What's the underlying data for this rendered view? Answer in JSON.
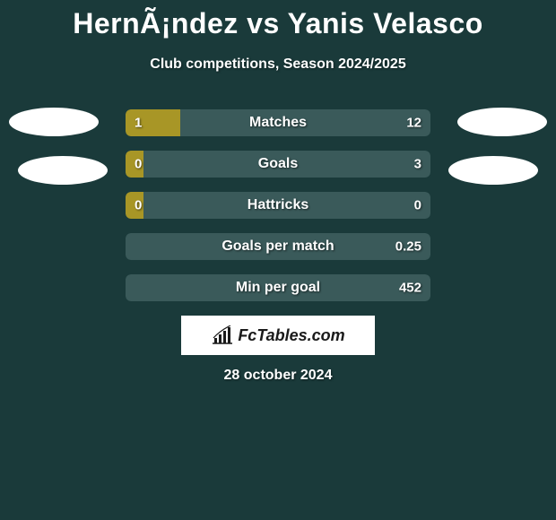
{
  "title": "HernÃ¡ndez vs Yanis Velasco",
  "subtitle": "Club competitions, Season 2024/2025",
  "date": "28 october 2024",
  "logo_text": "FcTables.com",
  "colors": {
    "background": "#1a3a3a",
    "bar_left": "#a89626",
    "bar_right": "#3a5a5a",
    "avatar": "#ffffff",
    "text": "#ffffff"
  },
  "bars": [
    {
      "label": "Matches",
      "left_value": "1",
      "right_value": "12",
      "left_pct": 18,
      "left_color": "#a89626",
      "right_color": "#3a5a5a"
    },
    {
      "label": "Goals",
      "left_value": "0",
      "right_value": "3",
      "left_pct": 6,
      "left_color": "#a89626",
      "right_color": "#3a5a5a"
    },
    {
      "label": "Hattricks",
      "left_value": "0",
      "right_value": "0",
      "left_pct": 6,
      "left_color": "#a89626",
      "right_color": "#3a5a5a"
    },
    {
      "label": "Goals per match",
      "left_value": "",
      "right_value": "0.25",
      "left_pct": 0,
      "left_color": "#a89626",
      "right_color": "#3a5a5a"
    },
    {
      "label": "Min per goal",
      "left_value": "",
      "right_value": "452",
      "left_pct": 0,
      "left_color": "#a89626",
      "right_color": "#3a5a5a"
    }
  ]
}
